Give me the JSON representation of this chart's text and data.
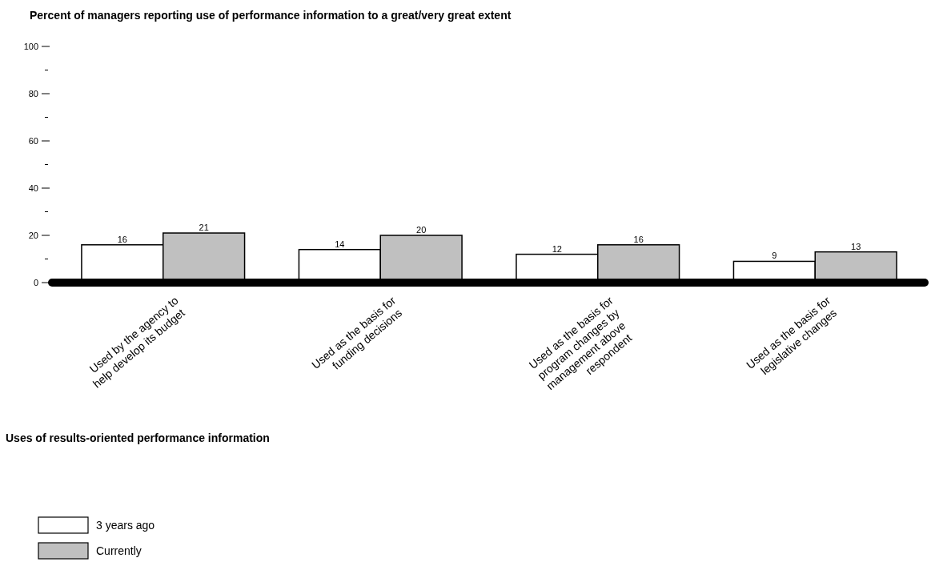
{
  "chart_data": {
    "type": "bar",
    "title": "Percent of managers reporting use of performance information to a great/very great extent",
    "xlabel": "Uses of results-oriented performance information",
    "categories": [
      "Used by the agency to help develop its budget",
      "Used as the basis for funding decisions",
      "Used as the basis for program changes by management above respondent",
      "Used as the basis for legislative changes"
    ],
    "series": [
      {
        "name": "3 years ago",
        "color": "#ffffff",
        "values": [
          16,
          14,
          12,
          9
        ]
      },
      {
        "name": "Currently",
        "color": "#c0c0c0",
        "values": [
          21,
          20,
          16,
          13
        ]
      }
    ],
    "ylim": [
      0,
      100
    ],
    "yticks": [
      0,
      {
        "value": 10,
        "label": null
      },
      20,
      {
        "value": 30,
        "label": null
      },
      40,
      {
        "value": 50,
        "label": null
      },
      60,
      {
        "value": 70,
        "label": null
      },
      80,
      {
        "value": 90,
        "label": null
      },
      100
    ],
    "data_labels": true,
    "grid": false,
    "legend": "bottom left"
  }
}
